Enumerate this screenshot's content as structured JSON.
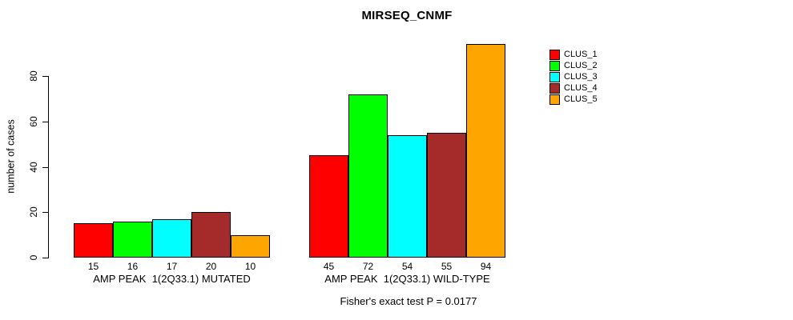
{
  "chart_data": {
    "type": "bar",
    "title": "MIRSEQ_CNMF",
    "ylabel": "number of cases",
    "ylim": [
      0,
      94
    ],
    "yticks": [
      0,
      20,
      40,
      60,
      80
    ],
    "grid": false,
    "legend_position": "top-right",
    "bar_value_labels": true,
    "categories": [
      "AMP PEAK  1(2Q33.1) MUTATED",
      "AMP PEAK  1(2Q33.1) WILD-TYPE"
    ],
    "series": [
      {
        "name": "CLUS_1",
        "color": "#ff0000",
        "values": [
          15,
          45
        ]
      },
      {
        "name": "CLUS_2",
        "color": "#00ff00",
        "values": [
          16,
          72
        ]
      },
      {
        "name": "CLUS_3",
        "color": "#00ffff",
        "values": [
          17,
          54
        ]
      },
      {
        "name": "CLUS_4",
        "color": "#a52a2a",
        "values": [
          20,
          55
        ]
      },
      {
        "name": "CLUS_5",
        "color": "#ffa500",
        "values": [
          10,
          94
        ]
      }
    ],
    "annotation": "Fisher's exact test P = 0.0177"
  }
}
